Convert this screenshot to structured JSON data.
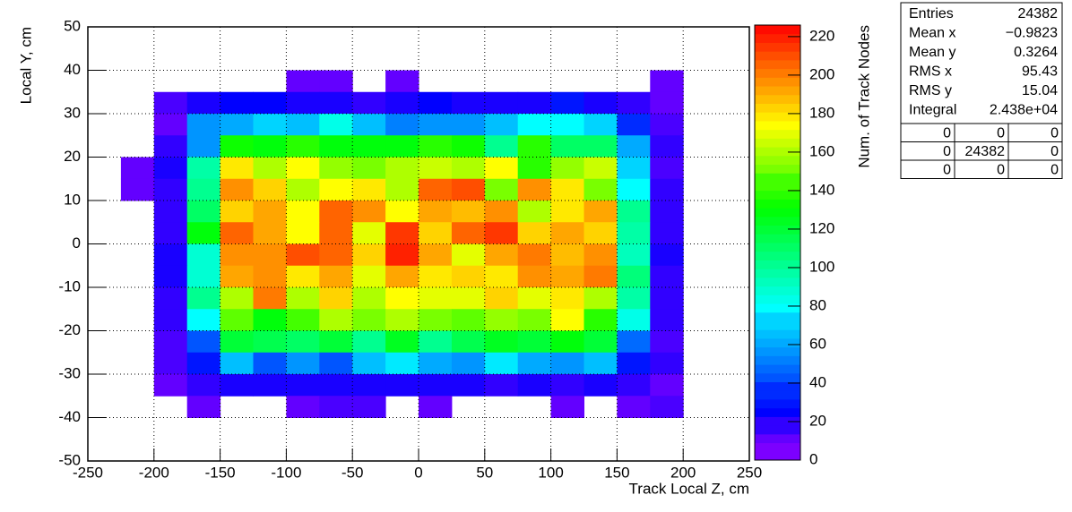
{
  "chart_data": {
    "type": "heatmap",
    "x_label": "Track Local Z, cm",
    "y_label": "Local Y, cm",
    "z_label": "Num. of Track Nodes",
    "xlim": [
      -250,
      250
    ],
    "xticks": [
      -250,
      -200,
      -150,
      -100,
      -50,
      0,
      50,
      100,
      150,
      200,
      250
    ],
    "ylim": [
      -50,
      50
    ],
    "yticks": [
      -50,
      -40,
      -30,
      -20,
      -10,
      0,
      10,
      20,
      30,
      40,
      50
    ],
    "zlim": [
      0,
      226
    ],
    "zticks": [
      0,
      20,
      40,
      60,
      80,
      100,
      120,
      140,
      160,
      180,
      200,
      220
    ],
    "grid": true,
    "xbins": [
      -225,
      -200,
      -175,
      -150,
      -125,
      -100,
      -75,
      -50,
      -25,
      0,
      25,
      50,
      75,
      100,
      125,
      150,
      175,
      200
    ],
    "ybins": [
      40,
      35,
      30,
      25,
      20,
      15,
      10,
      5,
      0,
      -5,
      -10,
      -15,
      -20,
      -25,
      -30,
      -35,
      -40
    ],
    "z": [
      [
        null,
        null,
        null,
        null,
        null,
        8,
        8,
        null,
        6,
        null,
        null,
        null,
        null,
        null,
        null,
        null,
        8
      ],
      [
        null,
        10,
        20,
        25,
        25,
        22,
        22,
        14,
        22,
        25,
        22,
        22,
        22,
        28,
        22,
        14,
        8
      ],
      [
        null,
        8,
        55,
        60,
        72,
        65,
        82,
        65,
        50,
        55,
        55,
        65,
        78,
        80,
        70,
        35,
        12
      ],
      [
        null,
        18,
        58,
        135,
        130,
        138,
        128,
        128,
        130,
        138,
        135,
        100,
        138,
        112,
        110,
        62,
        14
      ],
      [
        5,
        20,
        95,
        178,
        160,
        172,
        155,
        150,
        160,
        165,
        162,
        176,
        140,
        155,
        165,
        68,
        12
      ],
      [
        5,
        18,
        100,
        195,
        182,
        162,
        175,
        180,
        160,
        205,
        212,
        150,
        195,
        178,
        150,
        80,
        14
      ],
      [
        null,
        14,
        110,
        185,
        190,
        175,
        205,
        198,
        175,
        192,
        188,
        196,
        162,
        180,
        192,
        100,
        14
      ],
      [
        null,
        14,
        130,
        205,
        192,
        172,
        205,
        170,
        215,
        185,
        205,
        215,
        185,
        192,
        182,
        98,
        14
      ],
      [
        null,
        22,
        88,
        195,
        195,
        210,
        205,
        185,
        220,
        190,
        170,
        190,
        200,
        188,
        195,
        92,
        22
      ],
      [
        null,
        20,
        88,
        190,
        195,
        180,
        190,
        170,
        190,
        178,
        185,
        178,
        195,
        190,
        200,
        108,
        18
      ],
      [
        null,
        18,
        100,
        160,
        200,
        160,
        185,
        162,
        175,
        170,
        170,
        185,
        170,
        180,
        160,
        98,
        18
      ],
      [
        null,
        14,
        80,
        145,
        130,
        142,
        162,
        150,
        160,
        150,
        145,
        158,
        152,
        175,
        140,
        82,
        18
      ],
      [
        null,
        10,
        42,
        120,
        115,
        110,
        122,
        100,
        125,
        100,
        115,
        125,
        120,
        128,
        120,
        48,
        10
      ],
      [
        null,
        10,
        30,
        65,
        45,
        55,
        45,
        65,
        75,
        60,
        55,
        75,
        62,
        58,
        65,
        28,
        18
      ],
      [
        null,
        8,
        18,
        22,
        22,
        20,
        20,
        22,
        20,
        20,
        22,
        18,
        20,
        18,
        22,
        14,
        8
      ],
      [
        null,
        null,
        8,
        null,
        null,
        8,
        12,
        10,
        null,
        8,
        null,
        null,
        null,
        8,
        null,
        8,
        10
      ]
    ],
    "stats": [
      {
        "name": "Entries",
        "value": 24382
      },
      {
        "name": "Mean x",
        "value": {
          "value": -0.9823,
          "label": "−0.9823"
        }
      },
      {
        "name": "Mean y",
        "value": 0.3264
      },
      {
        "name": "RMS x",
        "value": 95.43
      },
      {
        "name": "RMS y",
        "value": 15.04
      },
      {
        "name": "Integral",
        "value": {
          "value": 24380,
          "label": "2.438e+04"
        }
      }
    ],
    "overflow": [
      [
        0,
        0,
        0
      ],
      [
        0,
        24382,
        0
      ],
      [
        0,
        0,
        0
      ]
    ]
  }
}
